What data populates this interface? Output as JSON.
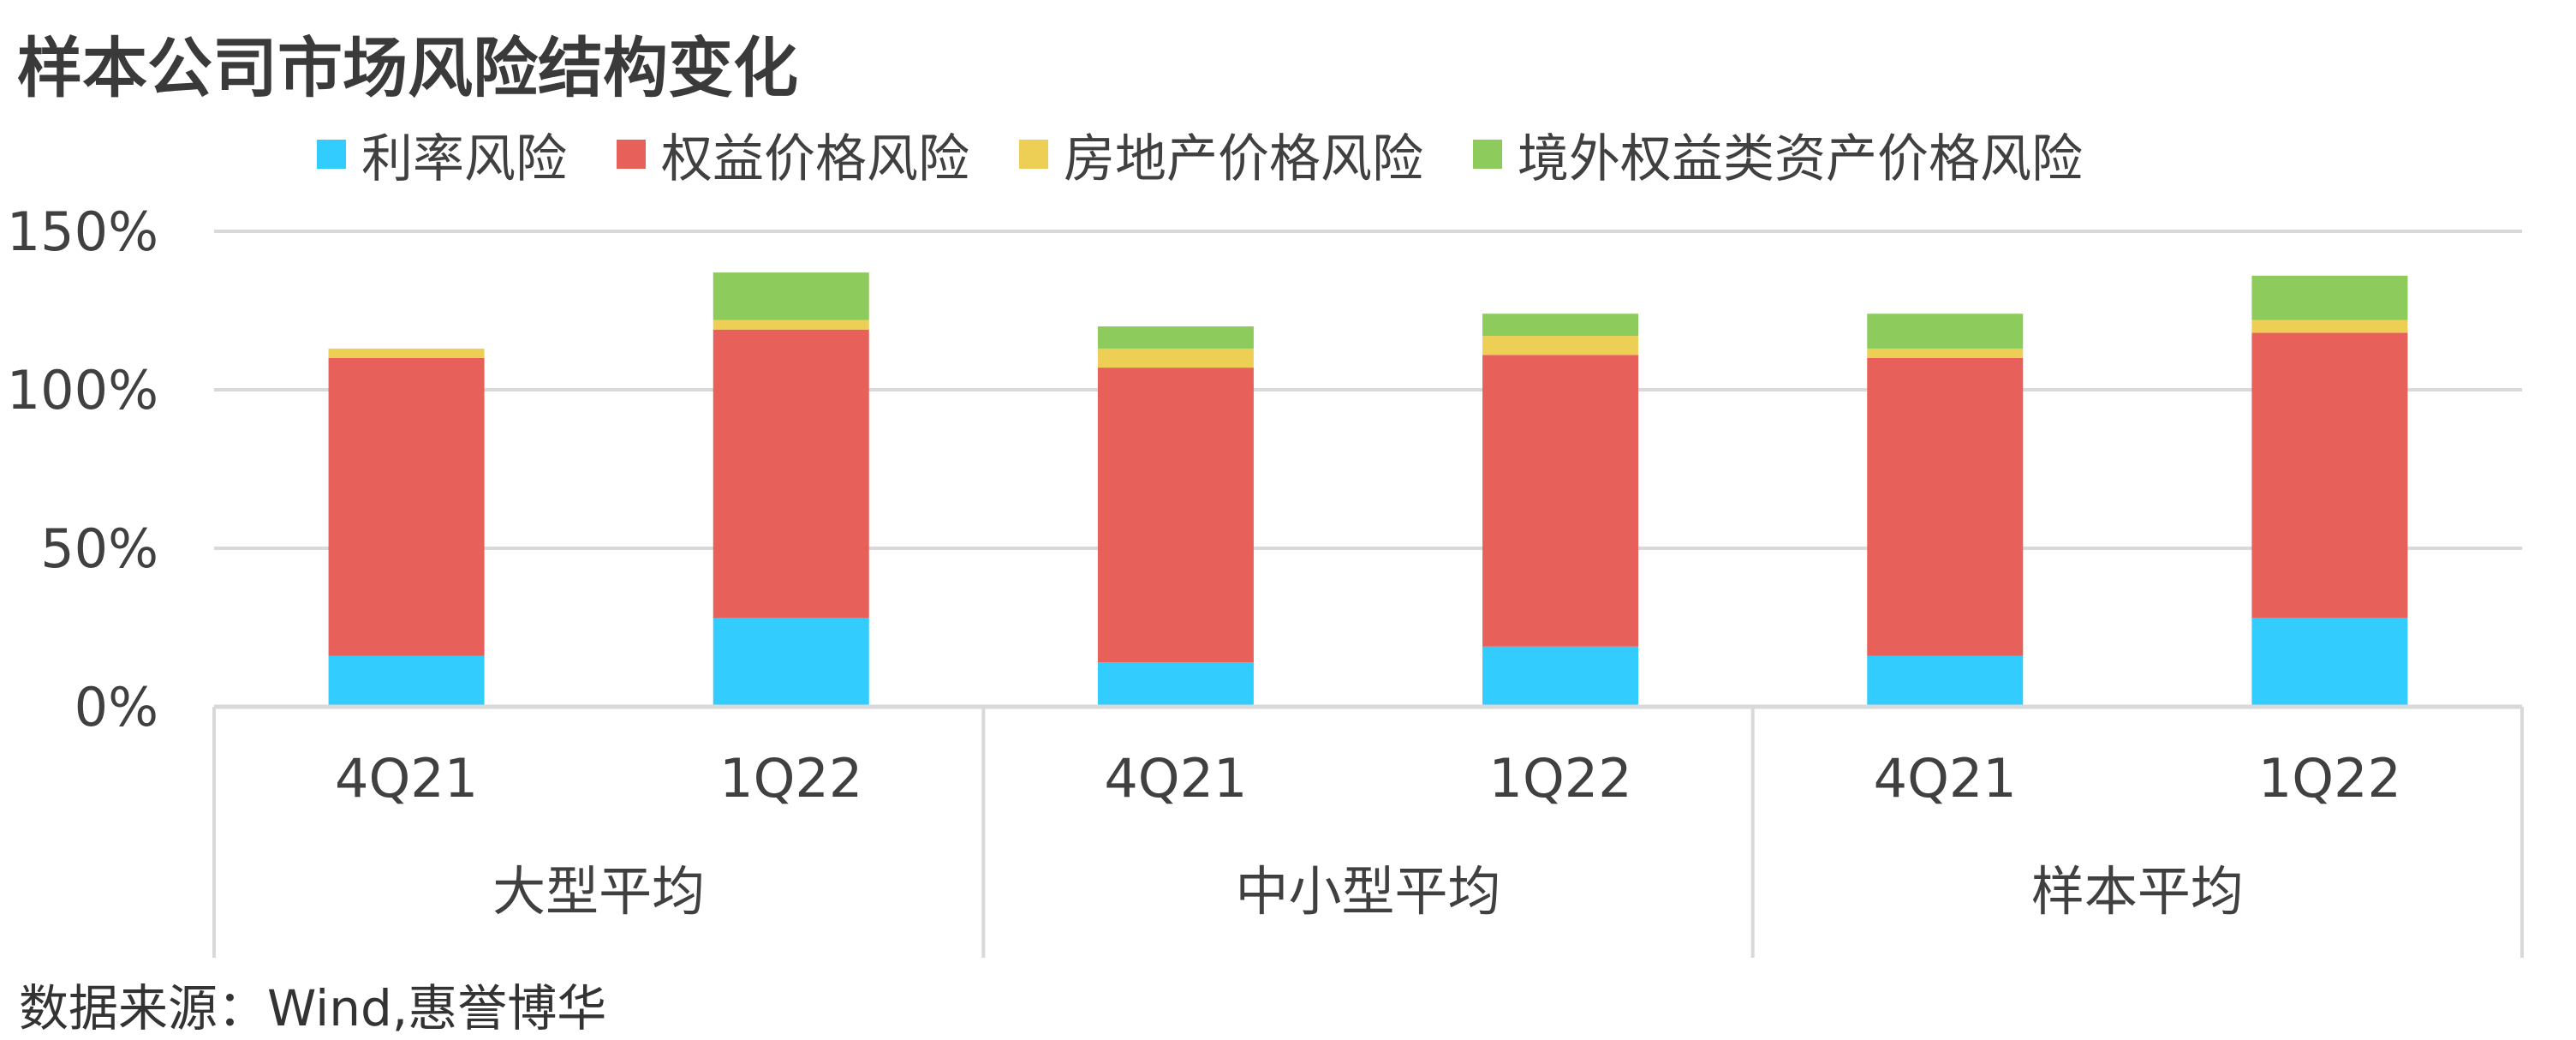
{
  "colors": {
    "rate_risk": "#33CCFF",
    "equity_risk": "#E8605A",
    "real_estate_risk": "#EECF55",
    "overseas_equity_risk": "#8CCB5C",
    "grid": "#D9D9D9",
    "axis_text": "#404040"
  },
  "chart_data": {
    "type": "bar",
    "stacked": true,
    "title": "样本公司市场风险结构变化",
    "ylim": [
      0,
      150
    ],
    "y_ticks": [
      0,
      50,
      100,
      150
    ],
    "y_tick_labels": [
      "0%",
      "50%",
      "100%",
      "150%"
    ],
    "grid": true,
    "legend_position": "top",
    "groups": [
      {
        "label": "大型平均",
        "categories": [
          "4Q21",
          "1Q22"
        ]
      },
      {
        "label": "中小型平均",
        "categories": [
          "4Q21",
          "1Q22"
        ]
      },
      {
        "label": "样本平均",
        "categories": [
          "4Q21",
          "1Q22"
        ]
      }
    ],
    "categories": [
      "4Q21",
      "1Q22",
      "4Q21",
      "1Q22",
      "4Q21",
      "1Q22"
    ],
    "series": [
      {
        "name": "利率风险",
        "color_key": "rate_risk",
        "values": [
          16,
          28,
          14,
          19,
          16,
          28
        ]
      },
      {
        "name": "权益价格风险",
        "color_key": "equity_risk",
        "values": [
          94,
          91,
          93,
          92,
          94,
          90
        ]
      },
      {
        "name": "房地产价格风险",
        "color_key": "real_estate_risk",
        "values": [
          3,
          3,
          6,
          6,
          3,
          4
        ]
      },
      {
        "name": "境外权益类资产价格风险",
        "color_key": "overseas_equity_risk",
        "values": [
          0,
          15,
          7,
          7,
          11,
          14
        ]
      }
    ]
  },
  "source_note": "数据来源：Wind,惠誉博华"
}
